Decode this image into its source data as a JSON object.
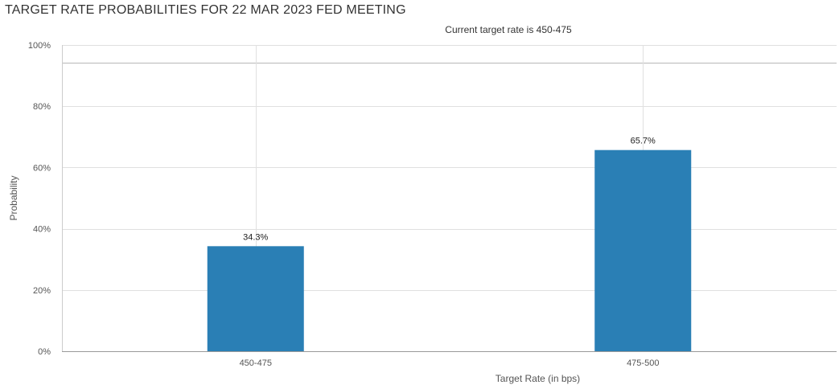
{
  "header": {
    "title": "TARGET RATE PROBABILITIES FOR 22 MAR 2023 FED MEETING"
  },
  "chart_data": {
    "type": "bar",
    "title": "TARGET RATE PROBABILITIES FOR 22 MAR 2023 FED MEETING",
    "subtitle": "Current target rate is 450-475",
    "xlabel": "Target Rate (in bps)",
    "ylabel": "Probability",
    "categories": [
      "450-475",
      "475-500"
    ],
    "values": [
      34.3,
      65.7
    ],
    "data_labels": [
      "34.3%",
      "65.7%"
    ],
    "ylim": [
      0,
      100
    ],
    "y_ticks": [
      0,
      20,
      40,
      60,
      80,
      100
    ],
    "y_tick_labels": [
      "0%",
      "20%",
      "40%",
      "60%",
      "80%",
      "100%"
    ],
    "grid": true,
    "legend": "none",
    "bar_color": "#2a7fb5",
    "grid_color": "#e0e0e0"
  }
}
